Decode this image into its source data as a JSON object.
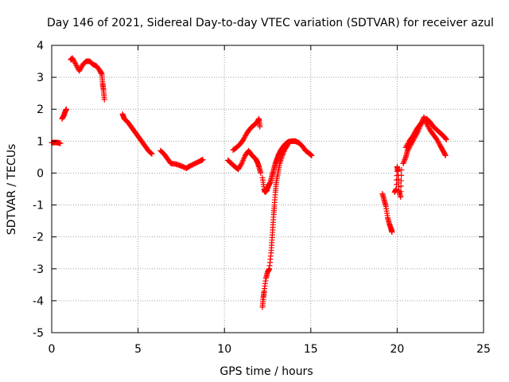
{
  "chart_data": {
    "type": "scatter",
    "title": "Day 146 of 2021, Sidereal Day-to-day VTEC variation (SDTVAR) for receiver azul",
    "xlabel": "GPS time / hours",
    "ylabel": "SDTVAR / TECUs",
    "xlim": [
      0,
      25
    ],
    "ylim": [
      -5,
      4
    ],
    "xticks": [
      0,
      5,
      10,
      15,
      20,
      25
    ],
    "yticks": [
      -5,
      -4,
      -3,
      -2,
      -1,
      0,
      1,
      2,
      3,
      4
    ],
    "xtick_labels": [
      "0",
      "5",
      "10",
      "15",
      "20",
      "25"
    ],
    "ytick_labels": [
      "-5",
      "-4",
      "-3",
      "-2",
      "-1",
      "0",
      "1",
      "2",
      "3",
      "4"
    ],
    "grid": true,
    "marker": "plus",
    "color": "#ff0000",
    "segments": [
      {
        "name": "arc-1",
        "points": [
          [
            0.0,
            0.95
          ],
          [
            0.2,
            0.96
          ],
          [
            0.4,
            0.95
          ],
          [
            0.5,
            0.93
          ]
        ]
      },
      {
        "name": "arc-2",
        "points": [
          [
            0.6,
            1.7
          ],
          [
            0.7,
            1.8
          ],
          [
            0.8,
            1.95
          ],
          [
            0.85,
            2.0
          ]
        ]
      },
      {
        "name": "arc-3",
        "points": [
          [
            1.1,
            3.55
          ],
          [
            1.2,
            3.6
          ],
          [
            1.4,
            3.4
          ],
          [
            1.6,
            3.2
          ],
          [
            1.8,
            3.4
          ],
          [
            2.0,
            3.5
          ],
          [
            2.2,
            3.5
          ],
          [
            2.4,
            3.4
          ],
          [
            2.6,
            3.35
          ],
          [
            2.8,
            3.2
          ],
          [
            2.9,
            3.1
          ],
          [
            2.95,
            2.8
          ],
          [
            3.0,
            2.6
          ],
          [
            3.05,
            2.3
          ]
        ]
      },
      {
        "name": "arc-4",
        "points": [
          [
            4.1,
            1.85
          ],
          [
            4.2,
            1.7
          ],
          [
            4.4,
            1.6
          ],
          [
            4.6,
            1.45
          ],
          [
            4.8,
            1.3
          ],
          [
            5.0,
            1.15
          ],
          [
            5.2,
            1.0
          ],
          [
            5.4,
            0.85
          ],
          [
            5.6,
            0.7
          ],
          [
            5.8,
            0.6
          ]
        ]
      },
      {
        "name": "arc-5",
        "points": [
          [
            6.3,
            0.7
          ],
          [
            6.5,
            0.6
          ],
          [
            6.7,
            0.45
          ],
          [
            6.9,
            0.3
          ],
          [
            7.2,
            0.28
          ],
          [
            7.5,
            0.22
          ],
          [
            7.8,
            0.15
          ],
          [
            8.0,
            0.22
          ],
          [
            8.3,
            0.3
          ],
          [
            8.6,
            0.38
          ],
          [
            8.75,
            0.42
          ]
        ]
      },
      {
        "name": "arc-6",
        "points": [
          [
            10.2,
            0.4
          ],
          [
            10.4,
            0.3
          ],
          [
            10.6,
            0.2
          ],
          [
            10.8,
            0.12
          ],
          [
            11.0,
            0.3
          ],
          [
            11.2,
            0.55
          ],
          [
            11.4,
            0.7
          ],
          [
            11.6,
            0.55
          ],
          [
            11.8,
            0.45
          ],
          [
            11.9,
            0.35
          ],
          [
            12.0,
            0.2
          ],
          [
            12.1,
            0.0
          ]
        ]
      },
      {
        "name": "arc-7",
        "points": [
          [
            10.5,
            0.72
          ],
          [
            10.7,
            0.8
          ],
          [
            10.9,
            0.9
          ],
          [
            11.1,
            1.05
          ],
          [
            11.3,
            1.25
          ],
          [
            11.5,
            1.4
          ],
          [
            11.7,
            1.5
          ],
          [
            11.9,
            1.6
          ],
          [
            12.0,
            1.7
          ],
          [
            12.05,
            1.45
          ]
        ]
      },
      {
        "name": "arc-8",
        "points": [
          [
            12.2,
            -0.15
          ],
          [
            12.3,
            -0.5
          ],
          [
            12.35,
            -0.6
          ],
          [
            12.45,
            -0.55
          ],
          [
            12.55,
            -0.4
          ],
          [
            12.65,
            -0.3
          ],
          [
            12.75,
            -0.1
          ],
          [
            12.85,
            0.1
          ],
          [
            12.95,
            0.3
          ],
          [
            13.05,
            0.45
          ],
          [
            13.15,
            0.6
          ],
          [
            13.3,
            0.75
          ],
          [
            13.5,
            0.9
          ],
          [
            13.7,
            0.98
          ],
          [
            13.9,
            1.0
          ],
          [
            14.1,
            1.0
          ],
          [
            14.3,
            0.95
          ],
          [
            14.5,
            0.85
          ],
          [
            14.7,
            0.7
          ],
          [
            14.9,
            0.62
          ],
          [
            15.05,
            0.55
          ]
        ]
      },
      {
        "name": "arc-9",
        "points": [
          [
            12.2,
            -4.2
          ],
          [
            12.25,
            -3.9
          ],
          [
            12.3,
            -3.7
          ],
          [
            12.4,
            -3.3
          ],
          [
            12.5,
            -3.1
          ],
          [
            12.6,
            -3.0
          ],
          [
            12.7,
            -2.5
          ],
          [
            12.75,
            -2.1
          ],
          [
            12.8,
            -1.7
          ],
          [
            12.85,
            -1.3
          ],
          [
            12.9,
            -1.0
          ],
          [
            12.95,
            -0.6
          ],
          [
            13.0,
            -0.3
          ],
          [
            13.1,
            0.0
          ],
          [
            13.2,
            0.3
          ],
          [
            13.35,
            0.55
          ],
          [
            13.5,
            0.75
          ],
          [
            13.65,
            0.88
          ]
        ]
      },
      {
        "name": "arc-10",
        "points": [
          [
            19.15,
            -0.65
          ],
          [
            19.25,
            -0.85
          ],
          [
            19.35,
            -1.05
          ],
          [
            19.45,
            -1.4
          ],
          [
            19.55,
            -1.6
          ],
          [
            19.65,
            -1.75
          ],
          [
            19.7,
            -1.85
          ]
        ]
      },
      {
        "name": "arc-11",
        "points": [
          [
            19.85,
            -0.6
          ],
          [
            19.95,
            -0.5
          ],
          [
            20.0,
            0.2
          ],
          [
            20.05,
            0.05
          ],
          [
            20.1,
            -0.55
          ],
          [
            20.2,
            -0.75
          ],
          [
            20.25,
            0.1
          ]
        ]
      },
      {
        "name": "arc-12",
        "points": [
          [
            20.35,
            0.3
          ],
          [
            20.5,
            0.5
          ],
          [
            20.6,
            0.7
          ],
          [
            20.8,
            0.9
          ],
          [
            21.0,
            1.1
          ],
          [
            21.2,
            1.3
          ],
          [
            21.4,
            1.55
          ],
          [
            21.55,
            1.75
          ],
          [
            21.7,
            1.55
          ],
          [
            21.9,
            1.35
          ],
          [
            22.1,
            1.2
          ],
          [
            22.3,
            1.05
          ],
          [
            22.5,
            0.85
          ],
          [
            22.65,
            0.7
          ],
          [
            22.8,
            0.55
          ]
        ]
      },
      {
        "name": "arc-13",
        "points": [
          [
            20.5,
            0.8
          ],
          [
            20.7,
            1.0
          ],
          [
            20.9,
            1.15
          ],
          [
            21.1,
            1.35
          ],
          [
            21.3,
            1.5
          ],
          [
            21.5,
            1.65
          ],
          [
            21.7,
            1.7
          ],
          [
            21.9,
            1.6
          ],
          [
            22.1,
            1.45
          ],
          [
            22.3,
            1.35
          ],
          [
            22.5,
            1.25
          ],
          [
            22.7,
            1.15
          ],
          [
            22.85,
            1.05
          ]
        ]
      }
    ]
  }
}
